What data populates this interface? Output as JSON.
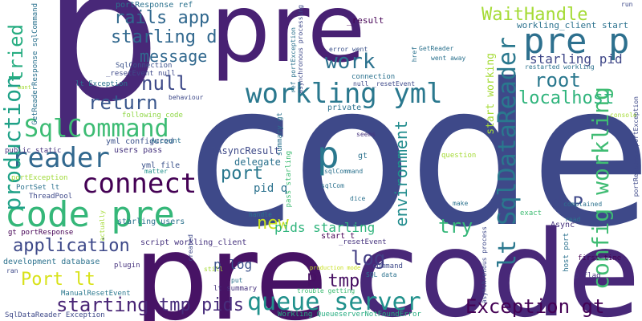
{
  "words": [
    {
      "text": "p",
      "color": "#482878"
    },
    {
      "text": "pre",
      "color": "#482173"
    },
    {
      "text": "code",
      "color": "#3e4989"
    },
    {
      "text": "pre",
      "color": "#471365"
    },
    {
      "text": "code",
      "color": "#482878"
    },
    {
      "text": "p",
      "color": "#2a788e"
    },
    {
      "text": "code pre",
      "color": "#35b779"
    },
    {
      "text": "pre p",
      "color": "#2d708e"
    },
    {
      "text": "config workling",
      "color": "#3fbc73"
    },
    {
      "text": "lt SqlDataReader",
      "color": "#2a788e"
    },
    {
      "text": "workling yml",
      "color": "#2a788e"
    },
    {
      "text": "SqlCommand",
      "color": "#3dbc74"
    },
    {
      "text": "reader",
      "color": "#31688e"
    },
    {
      "text": "connect",
      "color": "#440154"
    },
    {
      "text": "queue server",
      "color": "#21918c"
    },
    {
      "text": "Exception gt",
      "color": "#440154"
    },
    {
      "text": "production",
      "color": "#1fa187"
    },
    {
      "text": "tried",
      "color": "#27ad81"
    },
    {
      "text": "rails app",
      "color": "#31688e"
    },
    {
      "text": "starling d",
      "color": "#31688e"
    },
    {
      "text": "message",
      "color": "#31688e"
    },
    {
      "text": "work",
      "color": "#2c728e"
    },
    {
      "text": "null",
      "color": "#3e4a89"
    },
    {
      "text": "return",
      "color": "#39568c"
    },
    {
      "text": "WaitHandle",
      "color": "#a5db36"
    },
    {
      "text": "root",
      "color": "#2a788e"
    },
    {
      "text": "localhost",
      "color": "#2fb47c"
    },
    {
      "text": "starling pid",
      "color": "#3f4788"
    },
    {
      "text": "port",
      "color": "#2a788e"
    },
    {
      "text": "d P",
      "color": "#3f4889"
    },
    {
      "text": "log",
      "color": "#433e85"
    },
    {
      "text": "new",
      "color": "#c8e020"
    },
    {
      "text": "application",
      "color": "#3e4989"
    },
    {
      "text": "Port lt",
      "color": "#d8e219"
    },
    {
      "text": "starting",
      "color": "#482475"
    },
    {
      "text": "tmp pids",
      "color": "#472d7b"
    },
    {
      "text": "P tmp",
      "color": "#471063"
    },
    {
      "text": "try",
      "color": "#35b779"
    },
    {
      "text": "environment",
      "color": "#228c8d"
    },
    {
      "text": "pids starling",
      "color": "#2fb47c"
    },
    {
      "text": "pid q",
      "color": "#2c728e"
    },
    {
      "text": "p log",
      "color": "#3b528b"
    },
    {
      "text": "IAsyncResult",
      "color": "#3e4a89"
    },
    {
      "text": "delegate",
      "color": "#2c728e"
    },
    {
      "text": "yml file",
      "color": "#3b528b"
    },
    {
      "text": "yml configured",
      "color": "#3b528b"
    },
    {
      "text": "users pass",
      "color": "#46337e"
    },
    {
      "text": "portResponse ref",
      "color": "#2c728e"
    },
    {
      "text": "SqlConnection",
      "color": "#3b528b"
    },
    {
      "text": "_resetEvent null",
      "color": "#3e4989"
    },
    {
      "text": "lt Exception",
      "color": "#2c728e"
    },
    {
      "text": "following code",
      "color": "#8fd744"
    },
    {
      "text": "behaviour",
      "color": "#3e4989"
    },
    {
      "text": "Account",
      "color": "#2c728e"
    },
    {
      "text": "public static",
      "color": "#46337e"
    },
    {
      "text": "portException",
      "color": "#a0da39"
    },
    {
      "text": "PortSet lt",
      "color": "#2c728e"
    },
    {
      "text": "ThreadPool",
      "color": "#3e4989"
    },
    {
      "text": "gt portResponse",
      "color": "#440154"
    },
    {
      "text": "development database",
      "color": "#2c728e"
    },
    {
      "text": "ManualResetEvent",
      "color": "#2a788e"
    },
    {
      "text": "SqlDataReader Exception",
      "color": "#3e4989"
    },
    {
      "text": "script workling_client",
      "color": "#46337e"
    },
    {
      "text": "starling users",
      "color": "#2c728e"
    },
    {
      "text": "matter",
      "color": "#21918c"
    },
    {
      "text": "plugin",
      "color": "#46337e"
    },
    {
      "text": "summary gt",
      "color": "#2c728e"
    },
    {
      "text": "pass starling",
      "color": "#3fbc73"
    },
    {
      "text": "start t",
      "color": "#440154"
    },
    {
      "text": "_resetEvent",
      "color": "#46337e"
    },
    {
      "text": "production mode",
      "color": "#c8e020"
    },
    {
      "text": "lt summary",
      "color": "#46337e"
    },
    {
      "text": "command",
      "color": "#3e4989"
    },
    {
      "text": "SQL data",
      "color": "#2c728e"
    },
    {
      "text": "trouble getting",
      "color": "#3fbc73"
    },
    {
      "text": "Workling QueueserverNotFoundError",
      "color": "#27ad81"
    },
    {
      "text": "error went",
      "color": "#3b528b"
    },
    {
      "text": "connection",
      "color": "#2c728e"
    },
    {
      "text": "null _resetEvent",
      "color": "#3e4989"
    },
    {
      "text": "private",
      "color": "#2c728e"
    },
    {
      "text": "ref portException",
      "color": "#2c728e"
    },
    {
      "text": "asynchronous processing",
      "color": "#3e4989"
    },
    {
      "text": "_result",
      "color": "#440154"
    },
    {
      "text": "GetReader",
      "color": "#2c728e"
    },
    {
      "text": "went away",
      "color": "#2c728e"
    },
    {
      "text": "href",
      "color": "#2c728e"
    },
    {
      "text": "start working",
      "color": "#a5db36"
    },
    {
      "text": "workling_client start",
      "color": "#2c728e"
    },
    {
      "text": "restarted workling",
      "color": "#2c728e"
    },
    {
      "text": "question",
      "color": "#a5db36"
    },
    {
      "text": "seems",
      "color": "#46337e"
    },
    {
      "text": "gt",
      "color": "#2c728e"
    },
    {
      "text": "sqlCom",
      "color": "#2c728e"
    },
    {
      "text": "dice",
      "color": "#2c728e"
    },
    {
      "text": "make",
      "color": "#2c728e"
    },
    {
      "text": "handle",
      "color": "#2c728e"
    },
    {
      "text": "read",
      "color": "#2c728e"
    },
    {
      "text": "complained",
      "color": "#2c728e"
    },
    {
      "text": "Async",
      "color": "#46337e"
    },
    {
      "text": "exact",
      "color": "#3fbc73"
    },
    {
      "text": "host port",
      "color": "#2c728e"
    },
    {
      "text": "first time",
      "color": "#440154"
    },
    {
      "text": "p flag",
      "color": "#46337e"
    },
    {
      "text": "console",
      "color": "#a5db36"
    },
    {
      "text": "portResponse portException",
      "color": "#3e4989"
    },
    {
      "text": "run",
      "color": "#3e4989"
    },
    {
      "text": "GetReaderResponse sqlCommand",
      "color": "#2c728e"
    },
    {
      "text": "created",
      "color": "#3e4989"
    },
    {
      "text": "ran",
      "color": "#3e4989"
    },
    {
      "text": "still",
      "color": "#a5db36"
    },
    {
      "text": "asynchronous process",
      "color": "#3e4989"
    },
    {
      "text": "actually",
      "color": "#a5db36"
    },
    {
      "text": "put",
      "color": "#2c728e"
    },
    {
      "text": "want",
      "color": "#a5db36"
    },
    {
      "text": "sqlCommand",
      "color": "#2c728e"
    }
  ]
}
